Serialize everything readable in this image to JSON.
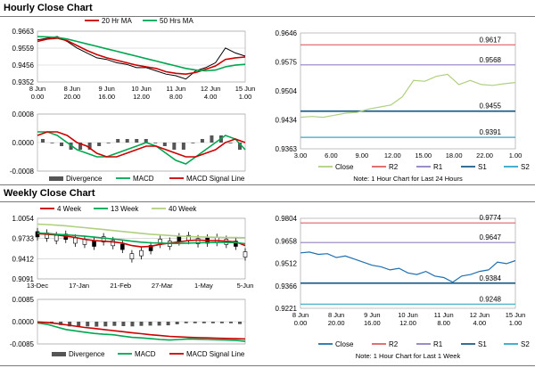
{
  "sections": {
    "hourly_title": "Hourly Close Chart",
    "weekly_title": "Weekly Close Chart"
  },
  "colors": {
    "price": "#000000",
    "ma_short": "#cc0000",
    "ma_long": "#00a650",
    "macd": "#00a650",
    "signal": "#cc0000",
    "divergence": "#555555",
    "close": "#b0d080",
    "r2": "#e06060",
    "r1": "#9080c0",
    "s1": "#1f5f8a",
    "s2": "#30a8c8",
    "close_weekly": "#1f6fb0",
    "grid": "#c8c8c8"
  },
  "chart_data": [
    {
      "id": "hourly_price",
      "type": "line",
      "title": "Hourly Close Chart",
      "ylim": [
        0.9352,
        0.9663
      ],
      "yticks": [
        "0.9663",
        "0.9559",
        "0.9456",
        "0.9352"
      ],
      "xticks": [
        "8 Jun\n0.00",
        "8 Jun\n20.00",
        "9 Jun\n16.00",
        "10 Jun\n12.00",
        "11 Jun\n8.00",
        "12 Jun\n4.00",
        "15 Jun\n1.00"
      ],
      "legend": [
        "20 Hr MA",
        "50 Hrs MA"
      ],
      "series": [
        {
          "name": "Price",
          "values": [
            0.961,
            0.962,
            0.963,
            0.96,
            0.956,
            0.953,
            0.95,
            0.949,
            0.947,
            0.946,
            0.944,
            0.944,
            0.942,
            0.94,
            0.939,
            0.937,
            0.942,
            0.944,
            0.947,
            0.956,
            0.953,
            0.951
          ]
        },
        {
          "name": "20 Hr MA",
          "values": [
            0.96,
            0.9615,
            0.962,
            0.9605,
            0.9575,
            0.9545,
            0.952,
            0.95,
            0.9485,
            0.947,
            0.9455,
            0.9445,
            0.9435,
            0.9415,
            0.9405,
            0.94,
            0.941,
            0.943,
            0.945,
            0.949,
            0.95,
            0.9505
          ]
        },
        {
          "name": "50 Hrs MA",
          "values": [
            0.963,
            0.9628,
            0.9625,
            0.9615,
            0.96,
            0.9585,
            0.957,
            0.9555,
            0.954,
            0.9525,
            0.951,
            0.9495,
            0.948,
            0.9465,
            0.945,
            0.9435,
            0.9425,
            0.942,
            0.9425,
            0.9445,
            0.9455,
            0.946
          ]
        }
      ]
    },
    {
      "id": "hourly_macd",
      "type": "line",
      "ylim": [
        -0.0008,
        0.0008
      ],
      "yticks": [
        "0.0008",
        "0.0000",
        "-0.0008"
      ],
      "legend": [
        "Divergence",
        "MACD",
        "MACD Signal Line"
      ],
      "series": [
        {
          "name": "MACD",
          "values": [
            0.0003,
            0.0003,
            0.0002,
            0.0,
            -0.0002,
            -0.0003,
            -0.0004,
            -0.0004,
            -0.0003,
            -0.0002,
            -0.0001,
            0.0,
            -0.0001,
            -0.0003,
            -0.0005,
            -0.0006,
            -0.0004,
            -0.0002,
            0.0,
            0.0002,
            0.0001,
            -0.0002
          ]
        },
        {
          "name": "MACD Signal Line",
          "values": [
            0.0002,
            0.0003,
            0.0003,
            0.0002,
            0.0,
            -0.0001,
            -0.0003,
            -0.0004,
            -0.0004,
            -0.0003,
            -0.0002,
            -0.0001,
            -0.0001,
            -0.0002,
            -0.0003,
            -0.0004,
            -0.0004,
            -0.0003,
            -0.0002,
            0.0,
            0.0001,
            0.0
          ]
        },
        {
          "name": "Divergence",
          "values": [
            0.0001,
            0.0,
            -0.0001,
            -0.0002,
            -0.0002,
            -0.0002,
            -0.0001,
            0.0,
            0.0001,
            0.0001,
            0.0001,
            0.0001,
            0.0,
            -0.0001,
            -0.0002,
            -0.0002,
            0.0,
            0.0001,
            0.0002,
            0.0002,
            0.0,
            -0.0002
          ]
        }
      ]
    },
    {
      "id": "hourly_pivot",
      "type": "line",
      "ylim": [
        0.9363,
        0.9646
      ],
      "yticks": [
        "0.9646",
        "0.9575",
        "0.9504",
        "0.9434",
        "0.9363"
      ],
      "xticks": [
        "3.00",
        "6.00",
        "9.00",
        "12.00",
        "15.00",
        "18.00",
        "22.00",
        "1.00"
      ],
      "legend": [
        "Close",
        "R2",
        "R1",
        "S1",
        "S2"
      ],
      "note": "Note: 1 Hour Chart for Last 24 Hours",
      "levels": {
        "R2": 0.9617,
        "R1": 0.9568,
        "S1": 0.9455,
        "S2": 0.9391
      },
      "level_labels": [
        "0.9617",
        "0.9568",
        "0.9455",
        "0.9391"
      ],
      "series": [
        {
          "name": "Close",
          "values": [
            0.944,
            0.9442,
            0.944,
            0.9445,
            0.945,
            0.9452,
            0.946,
            0.9465,
            0.947,
            0.949,
            0.953,
            0.9528,
            0.954,
            0.9545,
            0.952,
            0.953,
            0.952,
            0.9518,
            0.9522,
            0.9525
          ]
        }
      ]
    },
    {
      "id": "weekly_price",
      "type": "line",
      "title": "Weekly Close Chart",
      "ylim": [
        0.9091,
        1.0054
      ],
      "yticks": [
        "1.0054",
        "0.9733",
        "0.9412",
        "0.9091"
      ],
      "xticks": [
        "13-Dec",
        "17-Jan",
        "21-Feb",
        "27-Mar",
        "1-May",
        "5-Jun"
      ],
      "legend": [
        "4 Week",
        "13 Week",
        "40 Week"
      ],
      "series": [
        {
          "name": "Price",
          "values": [
            0.98,
            0.978,
            0.974,
            0.976,
            0.97,
            0.968,
            0.965,
            0.972,
            0.966,
            0.96,
            0.945,
            0.95,
            0.958,
            0.968,
            0.965,
            0.972,
            0.974,
            0.969,
            0.97,
            0.971,
            0.968,
            0.965,
            0.948
          ]
        },
        {
          "name": "4 Week",
          "values": [
            0.981,
            0.98,
            0.979,
            0.977,
            0.975,
            0.972,
            0.97,
            0.969,
            0.968,
            0.966,
            0.962,
            0.96,
            0.961,
            0.964,
            0.966,
            0.968,
            0.97,
            0.971,
            0.97,
            0.97,
            0.969,
            0.968,
            0.962
          ]
        },
        {
          "name": "13 Week",
          "values": [
            0.982,
            0.9815,
            0.98,
            0.979,
            0.978,
            0.977,
            0.9755,
            0.974,
            0.9725,
            0.971,
            0.969,
            0.9675,
            0.9665,
            0.966,
            0.9655,
            0.9655,
            0.966,
            0.9665,
            0.9668,
            0.967,
            0.967,
            0.9668,
            0.965
          ]
        },
        {
          "name": "40 Week",
          "values": [
            0.996,
            0.9955,
            0.9945,
            0.9935,
            0.992,
            0.9905,
            0.989,
            0.9875,
            0.986,
            0.9845,
            0.983,
            0.9815,
            0.98,
            0.979,
            0.978,
            0.9772,
            0.9765,
            0.976,
            0.9755,
            0.9752,
            0.975,
            0.9748,
            0.9745
          ]
        }
      ]
    },
    {
      "id": "weekly_macd",
      "type": "line",
      "ylim": [
        -0.0085,
        0.0085
      ],
      "yticks": [
        "0.0085",
        "0.0000",
        "-0.0085"
      ],
      "legend": [
        "Divergence",
        "MACD",
        "MACD Signal Line"
      ],
      "series": [
        {
          "name": "MACD",
          "values": [
            -0.0005,
            -0.001,
            -0.002,
            -0.003,
            -0.0035,
            -0.004,
            -0.0045,
            -0.0048,
            -0.005,
            -0.0055,
            -0.006,
            -0.0062,
            -0.0065,
            -0.0068,
            -0.007,
            -0.0068,
            -0.0066,
            -0.0067,
            -0.0068,
            -0.0069,
            -0.007,
            -0.0071,
            -0.0075
          ]
        },
        {
          "name": "MACD Signal Line",
          "values": [
            -0.0001,
            -0.0003,
            -0.0007,
            -0.0012,
            -0.0017,
            -0.0022,
            -0.0026,
            -0.003,
            -0.0034,
            -0.0038,
            -0.0042,
            -0.0046,
            -0.005,
            -0.0053,
            -0.0056,
            -0.0058,
            -0.006,
            -0.0061,
            -0.0062,
            -0.0063,
            -0.0064,
            -0.0065,
            -0.0066
          ]
        },
        {
          "name": "Divergence",
          "values": [
            -0.0004,
            -0.0007,
            -0.0013,
            -0.0018,
            -0.0018,
            -0.0018,
            -0.0019,
            -0.0018,
            -0.0016,
            -0.0017,
            -0.0018,
            -0.0016,
            -0.0015,
            -0.0015,
            -0.0014,
            -0.001,
            -0.0006,
            -0.0006,
            -0.0006,
            -0.0006,
            -0.0006,
            -0.0006,
            -0.0009
          ]
        }
      ]
    },
    {
      "id": "weekly_pivot",
      "type": "line",
      "ylim": [
        0.9221,
        0.9804
      ],
      "yticks": [
        "0.9804",
        "0.9658",
        "0.9512",
        "0.9366",
        "0.9221"
      ],
      "xticks": [
        "8 Jun\n0.00",
        "8 Jun\n20.00",
        "9 Jun\n16.00",
        "10 Jun\n12.00",
        "11 Jun\n8.00",
        "12 Jun\n4.00",
        "15 Jun\n1.00"
      ],
      "legend": [
        "Close",
        "R2",
        "R1",
        "S1",
        "S2"
      ],
      "note": "Note: 1 Hour Chart for Last 1 Week",
      "levels": {
        "R2": 0.9774,
        "R1": 0.9647,
        "S1": 0.9384,
        "S2": 0.9248
      },
      "level_labels": [
        "0.9774",
        "0.9647",
        "0.9384",
        "0.9248"
      ],
      "series": [
        {
          "name": "Close",
          "values": [
            0.958,
            0.9585,
            0.957,
            0.9575,
            0.955,
            0.956,
            0.954,
            0.952,
            0.95,
            0.949,
            0.947,
            0.948,
            0.945,
            0.944,
            0.946,
            0.943,
            0.942,
            0.939,
            0.943,
            0.944,
            0.946,
            0.947,
            0.952,
            0.951,
            0.953
          ]
        }
      ]
    }
  ]
}
